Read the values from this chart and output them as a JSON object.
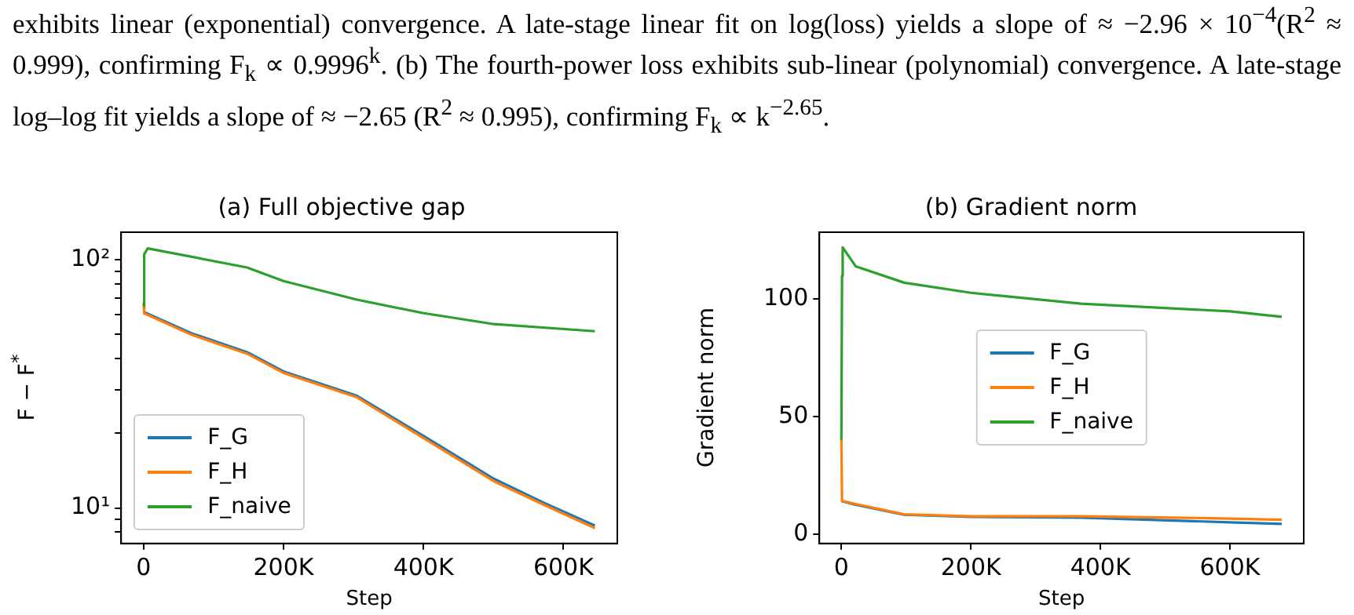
{
  "chart_data": [
    {
      "type": "line",
      "title": "(a) Full objective gap",
      "xlabel": "Step",
      "ylabel": "F − F$^{*}$",
      "log": "y",
      "legend": "lower left",
      "annotations": [
        "exhibits linear (exponential) convergence. A late-stage linear fit on log(loss) yields a slope of ≈ −2.96 × 10$^{−4}$(R$^{2}$ ≈ 0.999), confirming F$_{k}$ ∝ 0.9996$^{k}$. (b) The fourth-power loss exhibits sub-linear (polynomial) convergence. A late-stage log–log fit yields a slope of ≈ −2.65 (R$^{2}$ ≈ 0.995), confirming F$_{k}$ ∝ k$^{−2.65}$."
      ],
      "xlim": [
        -32000,
        677000
      ],
      "xticks": [
        0,
        {
          "value": 200000,
          "label": "200K"
        },
        {
          "value": 400000,
          "label": "400K"
        },
        {
          "value": 600000,
          "label": "600K"
        }
      ],
      "ylim": [
        7.2,
        129
      ],
      "yticks": [
        {
          "value": 8,
          "label": null
        },
        {
          "value": 9,
          "label": null
        },
        {
          "value": 10,
          "label": "10¹"
        },
        {
          "value": 20,
          "label": null
        },
        {
          "value": 30,
          "label": null
        },
        {
          "value": 40,
          "label": null
        },
        {
          "value": 50,
          "label": null
        },
        {
          "value": 60,
          "label": null
        },
        {
          "value": 70,
          "label": null
        },
        {
          "value": 80,
          "label": null
        },
        {
          "value": 90,
          "label": null
        },
        {
          "value": 100,
          "label": "10²"
        }
      ],
      "series": [
        {
          "name": "F_G",
          "color": "#1f77b4",
          "x": [
            0,
            1000,
            69000,
            148000,
            200000,
            305000,
            399000,
            501000,
            572000,
            645000
          ],
          "values": [
            61,
            61.5,
            50.5,
            42.4,
            35.5,
            28.3,
            19.6,
            13.1,
            10.5,
            8.5
          ]
        },
        {
          "name": "F_H",
          "color": "#ff7f0e",
          "x": [
            0,
            1000,
            69000,
            148000,
            200000,
            305000,
            399000,
            501000,
            572000,
            645000
          ],
          "values": [
            67,
            60.8,
            49.8,
            41.8,
            35,
            27.9,
            19.2,
            12.8,
            10.3,
            8.3
          ]
        },
        {
          "name": "F_naive",
          "color": "#2ca02c",
          "x": [
            0,
            1000,
            6000,
            148000,
            200000,
            305000,
            399000,
            501000,
            645000
          ],
          "values": [
            65,
            105,
            111,
            93,
            82,
            69,
            61,
            55,
            51.5
          ]
        }
      ]
    },
    {
      "type": "line",
      "title": "(b) Gradient norm",
      "xlabel": "Step",
      "ylabel": "Gradient norm",
      "legend": "center",
      "xlim": [
        -34000,
        714000
      ],
      "xticks": [
        0,
        {
          "value": 200000,
          "label": "200K"
        },
        {
          "value": 400000,
          "label": "400K"
        },
        {
          "value": 600000,
          "label": "600K"
        }
      ],
      "ylim": [
        -4,
        128.5
      ],
      "yticks": [
        0,
        50,
        100
      ],
      "series": [
        {
          "name": "F_G",
          "color": "#1f77b4",
          "x": [
            0,
            1000,
            22000,
            97000,
            200000,
            370000,
            600000,
            680000
          ],
          "values": [
            14,
            14,
            12.5,
            8.2,
            7.3,
            7,
            5,
            4.3
          ]
        },
        {
          "name": "F_H",
          "color": "#ff7f0e",
          "x": [
            0,
            1000,
            22000,
            97000,
            200000,
            370000,
            600000,
            680000
          ],
          "values": [
            40,
            14.1,
            12.8,
            8.4,
            7.6,
            7.6,
            6.6,
            6.1
          ]
        },
        {
          "name": "F_naive",
          "color": "#2ca02c",
          "x": [
            0,
            1000,
            2000,
            22000,
            97000,
            200000,
            370000,
            600000,
            680000
          ],
          "values": [
            40,
            110,
            122,
            114,
            107,
            102.7,
            98.1,
            94.8,
            92.5
          ]
        }
      ]
    }
  ]
}
